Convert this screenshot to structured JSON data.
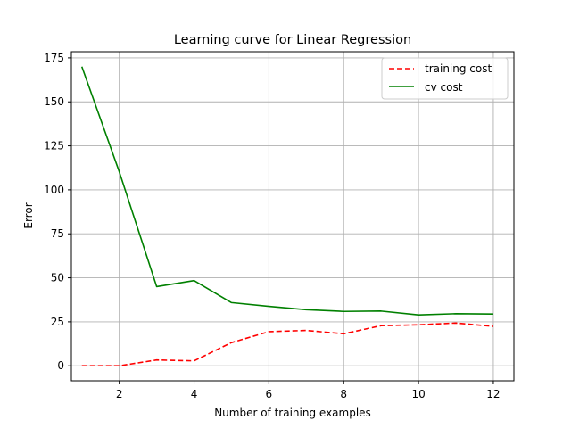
{
  "chart_data": {
    "type": "line",
    "title": "Learning curve for Linear Regression",
    "xlabel": "Number of training examples",
    "ylabel": "Error",
    "xlim": [
      0.72,
      12.55
    ],
    "ylim": [
      -8.5,
      178.5
    ],
    "xticks": [
      2,
      4,
      6,
      8,
      10,
      12
    ],
    "yticks": [
      0,
      25,
      50,
      75,
      100,
      125,
      150,
      175
    ],
    "grid": true,
    "legend_position": "top-right",
    "x": [
      1,
      2,
      3,
      4,
      5,
      6,
      7,
      8,
      9,
      10,
      11,
      12
    ],
    "series": [
      {
        "name": "training cost",
        "color": "#ff0000",
        "style": "dashed",
        "values": [
          0.0,
          0.0,
          3.3,
          2.8,
          13.2,
          19.4,
          20.1,
          18.2,
          22.8,
          23.3,
          24.3,
          22.4
        ]
      },
      {
        "name": "cv cost",
        "color": "#008000",
        "style": "solid",
        "values": [
          170.0,
          110.3,
          45.0,
          48.4,
          35.9,
          33.8,
          31.9,
          30.9,
          31.1,
          28.9,
          29.6,
          29.4
        ]
      }
    ]
  }
}
